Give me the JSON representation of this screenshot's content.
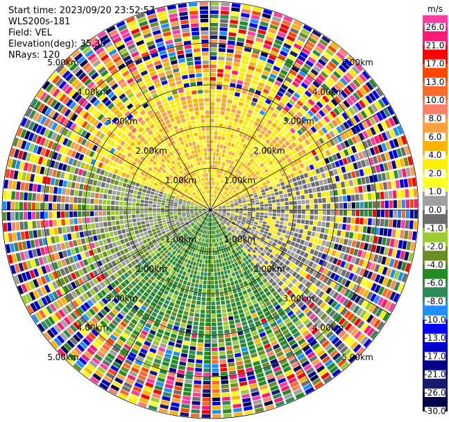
{
  "header": {
    "lines": [
      "Start time: 2023/09/20 23:52:57",
      "WLS200s-181",
      "Field: VEL",
      "Elevation(deg): 35.30",
      "NRays: 120"
    ]
  },
  "range_rings": [
    "1.00km",
    "2.00km",
    "3.00km",
    "4.00km",
    "5.00km"
  ],
  "colorbar": {
    "unit": "m/s",
    "ticks": [
      "26.0",
      "21.0",
      "17.0",
      "13.0",
      "10.0",
      "8.0",
      "6.0",
      "4.0",
      "2.0",
      "1.0",
      "0.0",
      "-1.0",
      "-2.0",
      "-4.0",
      "-6.0",
      "-8.0",
      "-10.0",
      "-13.0",
      "-17.0",
      "-21.0",
      "-26.0",
      "-30.0"
    ],
    "colors": [
      "#ff3ca0",
      "#ff1a75",
      "#ff0000",
      "#ff4500",
      "#ff6a2a",
      "#ff8066",
      "#ffa040",
      "#ffb400",
      "#ffee00",
      "#ffff20",
      "#a0a0a0",
      "#6e6e6e",
      "#9acd32",
      "#6b8e23",
      "#228b22",
      "#2e8b57",
      "#1e8fff",
      "#0000ff",
      "#0000cd",
      "#00008b",
      "#191970",
      "#00004a"
    ]
  }
}
